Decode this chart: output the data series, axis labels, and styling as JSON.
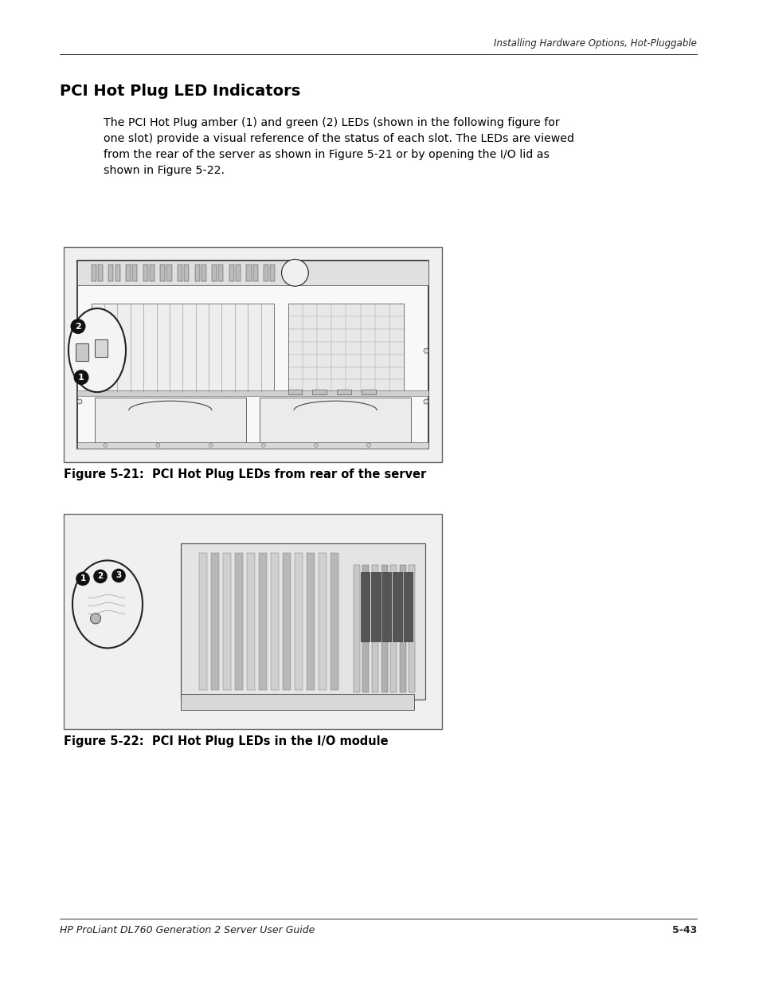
{
  "page_width": 9.54,
  "page_height": 12.35,
  "bg_color": "#ffffff",
  "header_text": "Installing Hardware Options, Hot-Pluggable",
  "title": "PCI Hot Plug LED Indicators",
  "body_text": "The PCI Hot Plug amber (1) and green (2) LEDs (shown in the following figure for\none slot) provide a visual reference of the status of each slot. The LEDs are viewed\nfrom the rear of the server as shown in Figure 5-21 or by opening the I/O lid as\nshown in Figure 5-22.",
  "fig1_caption": "Figure 5-21:  PCI Hot Plug LEDs from rear of the server",
  "fig2_caption": "Figure 5-22:  PCI Hot Plug LEDs in the I/O module",
  "footer_left": "HP ProLiant DL760 Generation 2 Server User Guide",
  "footer_right": "5-43",
  "title_fontsize": 14,
  "body_fontsize": 10.2,
  "caption_fontsize": 10.5,
  "header_fontsize": 8.5,
  "footer_fontsize": 9
}
